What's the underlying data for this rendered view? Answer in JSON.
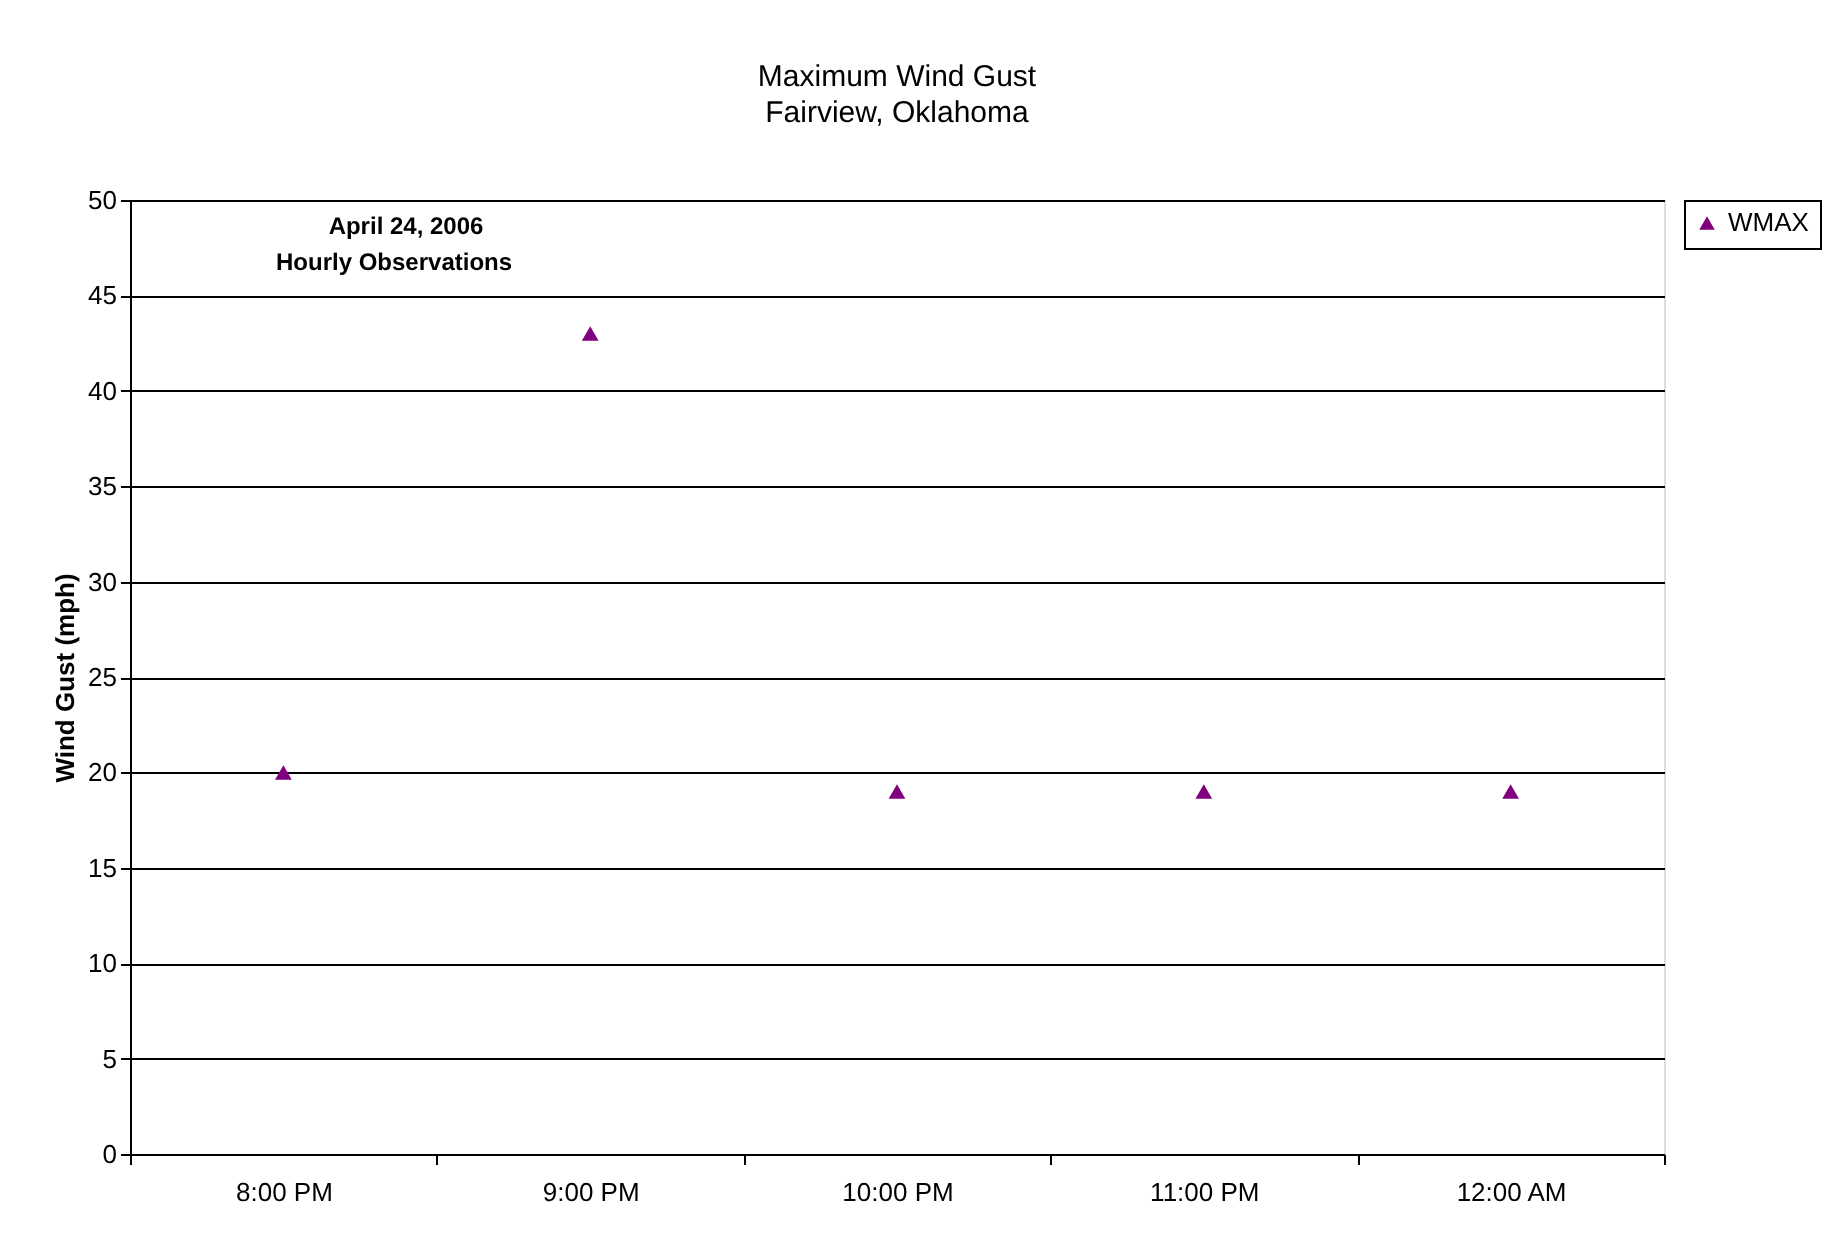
{
  "chart_data": {
    "type": "scatter",
    "title": "Maximum Wind Gust",
    "subtitle": "Fairview, Oklahoma",
    "ylabel": "Wind Gust (mph)",
    "categories": [
      "8:00 PM",
      "9:00 PM",
      "10:00 PM",
      "11:00 PM",
      "12:00 AM"
    ],
    "series": [
      {
        "name": "WMAX",
        "color": "#800080",
        "values": [
          20,
          43,
          19,
          19,
          19
        ]
      }
    ],
    "ylim": [
      0,
      50
    ],
    "yticks": [
      0,
      5,
      10,
      15,
      20,
      25,
      30,
      35,
      40,
      45,
      50
    ],
    "annotations": [
      "April 24, 2006",
      "Hourly Observations"
    ],
    "grid": "y",
    "legend": "right",
    "marker": "triangle"
  }
}
